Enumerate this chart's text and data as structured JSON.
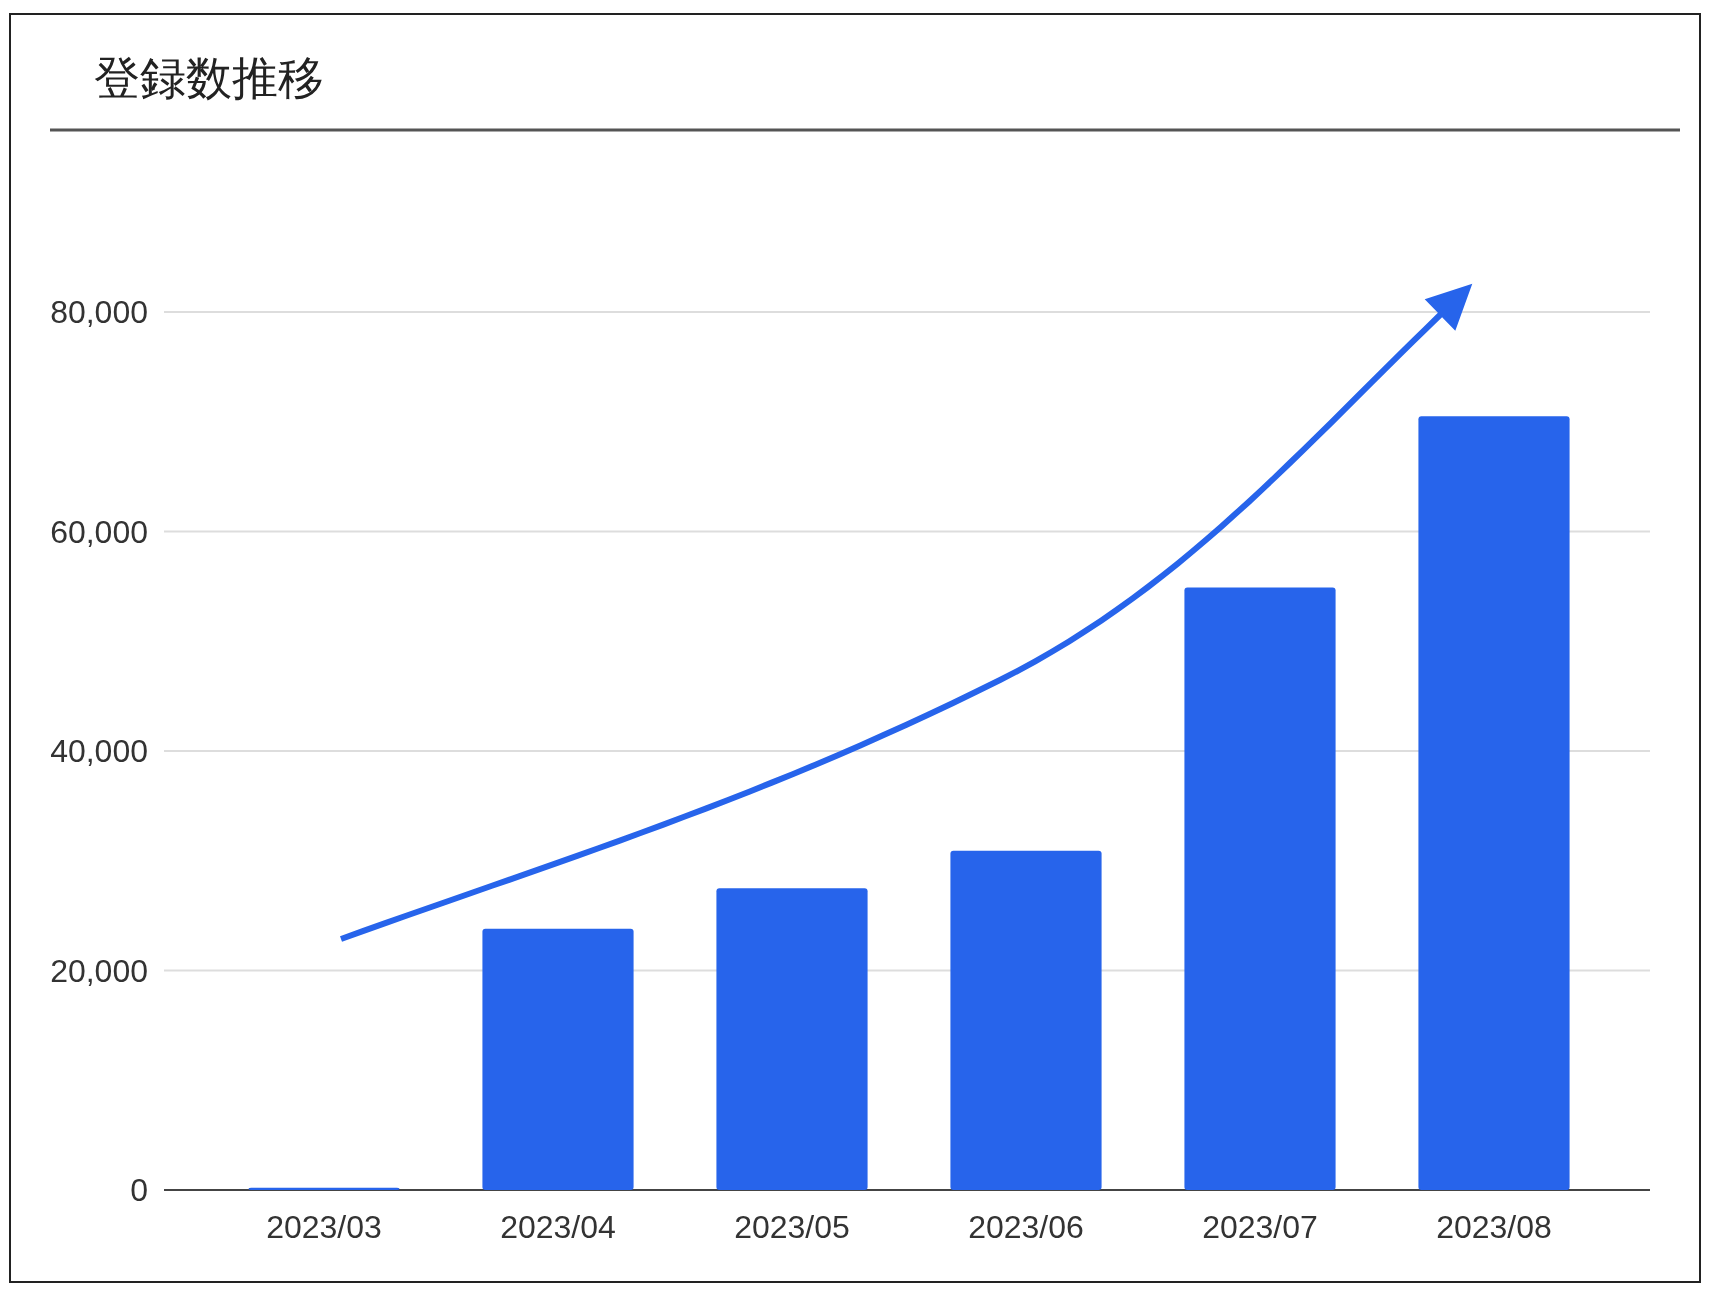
{
  "chart_data": {
    "type": "bar",
    "title": "登録数推移",
    "categories": [
      "2023/03",
      "2023/04",
      "2023/05",
      "2023/06",
      "2023/07",
      "2023/08"
    ],
    "values": [
      200,
      23800,
      27500,
      30900,
      54900,
      70500
    ],
    "color": "#2764eb",
    "ylim": [
      0,
      80000
    ],
    "yticks": [
      {
        "value": 0,
        "label": "0"
      },
      {
        "value": 20000,
        "label": "20,000"
      },
      {
        "value": 40000,
        "label": "40,000"
      },
      {
        "value": 60000,
        "label": "60,000"
      },
      {
        "value": 80000,
        "label": "80,000"
      }
    ],
    "grid": "y"
  }
}
